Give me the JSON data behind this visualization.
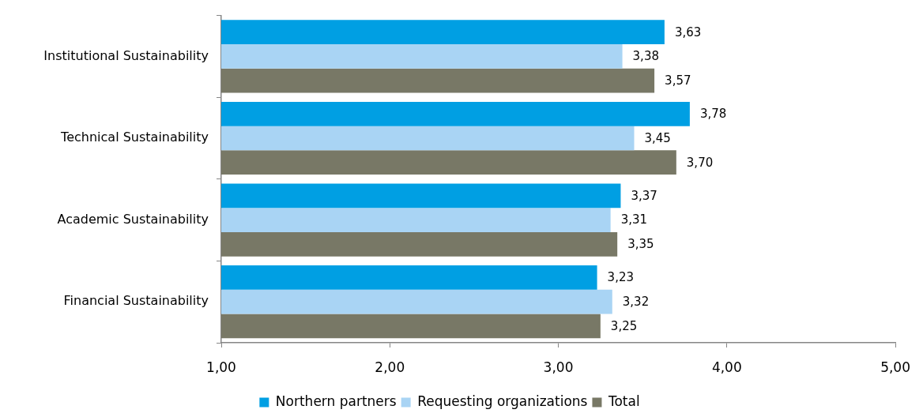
{
  "chart_data": {
    "type": "bar",
    "orientation": "horizontal",
    "categories": [
      "Institutional Sustainability",
      "Technical Sustainability",
      "Academic Sustainability",
      "Financial Sustainability"
    ],
    "series": [
      {
        "name": "Northern partners",
        "color": "#009fe3",
        "values": [
          3.63,
          3.78,
          3.37,
          3.23
        ],
        "value_labels": [
          "3,63",
          "3,78",
          "3,37",
          "3,23"
        ]
      },
      {
        "name": "Requesting organizations",
        "color": "#a9d4f4",
        "values": [
          3.38,
          3.45,
          3.31,
          3.32
        ],
        "value_labels": [
          "3,38",
          "3,45",
          "3,31",
          "3,32"
        ]
      },
      {
        "name": "Total",
        "color": "#787866",
        "values": [
          3.57,
          3.7,
          3.35,
          3.25
        ],
        "value_labels": [
          "3,57",
          "3,70",
          "3,35",
          "3,25"
        ]
      }
    ],
    "xlim": [
      1,
      5
    ],
    "xticks": [
      {
        "value": 1,
        "label": "1,00"
      },
      {
        "value": 2,
        "label": "2,00"
      },
      {
        "value": 3,
        "label": "3,00"
      },
      {
        "value": 4,
        "label": "4,00"
      },
      {
        "value": 5,
        "label": "5,00"
      }
    ],
    "grid": false,
    "legend": "bottom"
  }
}
